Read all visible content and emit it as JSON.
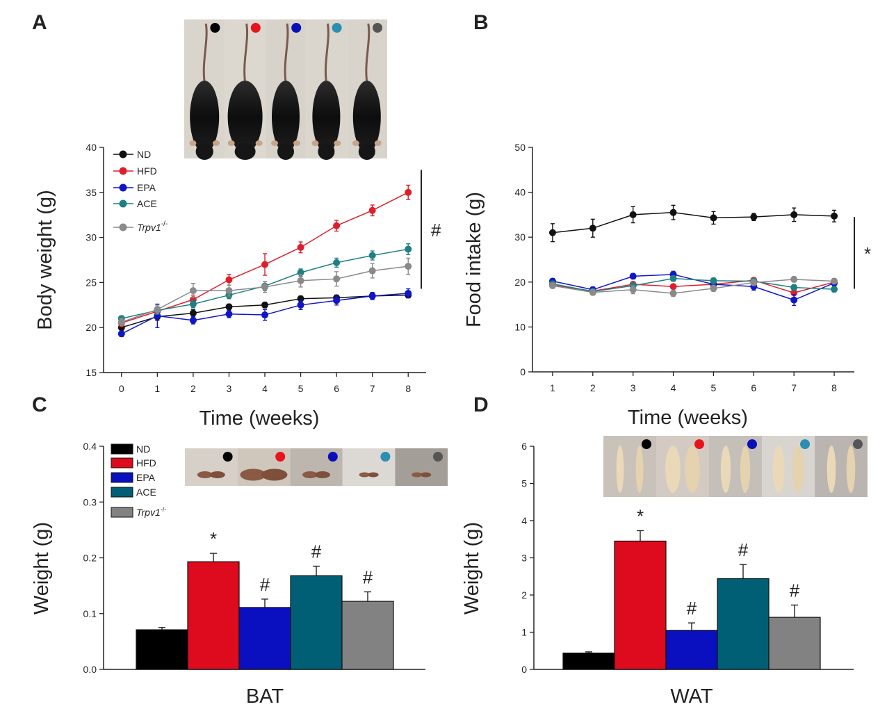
{
  "figure": {
    "panels": [
      "A",
      "B",
      "C",
      "D"
    ]
  },
  "groups": [
    {
      "name": "ND",
      "color": "#111111"
    },
    {
      "name": "HFD",
      "color": "#e01e2b"
    },
    {
      "name": "EPA",
      "color": "#1016c8"
    },
    {
      "name": "ACE",
      "color": "#1e7f84"
    },
    {
      "name": "Trpv1",
      "superscript": "-/-",
      "color": "#8a8a8a"
    }
  ],
  "bar_colors": [
    "#000000",
    "#dd0b1d",
    "#0a10c0",
    "#005f74",
    "#828282"
  ],
  "photo_dot_colors": [
    "#000000",
    "#e8131d",
    "#0b0fb8",
    "#2a8fb0",
    "#555555"
  ],
  "chart_data": [
    {
      "panel": "A",
      "type": "line",
      "xlabel": "Time (weeks)",
      "ylabel": "Body weight (g)",
      "x": [
        0,
        1,
        2,
        3,
        4,
        5,
        6,
        7,
        8
      ],
      "xlim": [
        -0.5,
        8.5
      ],
      "ylim": [
        15,
        40
      ],
      "yticks": [
        15,
        20,
        25,
        30,
        35,
        40
      ],
      "series": [
        {
          "name": "ND",
          "values": [
            20.0,
            21.2,
            21.6,
            22.3,
            22.5,
            23.2,
            23.3,
            23.5,
            23.6
          ],
          "errors": [
            0.3,
            0.4,
            0.4,
            0.3,
            0.3,
            0.3,
            0.3,
            0.3,
            0.3
          ]
        },
        {
          "name": "HFD",
          "values": [
            20.5,
            21.8,
            23.1,
            25.3,
            27.0,
            28.9,
            31.3,
            33.0,
            35.0
          ],
          "errors": [
            0.4,
            0.5,
            0.5,
            0.6,
            1.2,
            0.6,
            0.6,
            0.6,
            0.8
          ]
        },
        {
          "name": "EPA",
          "values": [
            19.3,
            21.3,
            20.8,
            21.5,
            21.4,
            22.5,
            23.0,
            23.5,
            23.8
          ],
          "errors": [
            0.3,
            1.3,
            0.4,
            0.4,
            0.6,
            0.5,
            0.5,
            0.4,
            0.5
          ]
        },
        {
          "name": "ACE",
          "values": [
            21.0,
            21.9,
            22.6,
            23.6,
            24.6,
            26.1,
            27.2,
            28.0,
            28.7
          ],
          "errors": [
            0.3,
            0.4,
            0.4,
            0.4,
            0.5,
            0.4,
            0.5,
            0.5,
            0.6
          ]
        },
        {
          "name": "Trpv1-/-",
          "values": [
            20.6,
            22.0,
            24.1,
            24.1,
            24.5,
            25.2,
            25.4,
            26.3,
            26.8
          ],
          "errors": [
            0.4,
            0.5,
            0.8,
            0.6,
            0.6,
            0.7,
            0.8,
            0.8,
            0.9
          ]
        }
      ],
      "annotation": "#",
      "legend_position": "top-left"
    },
    {
      "panel": "B",
      "type": "line",
      "xlabel": "Time (weeks)",
      "ylabel": "Food intake (g)",
      "x": [
        1,
        2,
        3,
        4,
        5,
        6,
        7,
        8
      ],
      "xlim": [
        0.5,
        8.5
      ],
      "ylim": [
        0,
        50
      ],
      "yticks": [
        0,
        10,
        20,
        30,
        40,
        50
      ],
      "series": [
        {
          "name": "ND",
          "values": [
            31.0,
            32.0,
            35.0,
            35.5,
            34.3,
            34.5,
            35.0,
            34.7
          ],
          "errors": [
            2.0,
            2.0,
            1.8,
            1.6,
            1.4,
            0.8,
            1.5,
            1.3
          ]
        },
        {
          "name": "HFD",
          "values": [
            19.3,
            18.0,
            19.5,
            19.0,
            19.5,
            20.4,
            17.6,
            20.0
          ],
          "errors": [
            0.5,
            0.5,
            0.5,
            0.5,
            0.5,
            0.5,
            0.5,
            0.5
          ]
        },
        {
          "name": "EPA",
          "values": [
            20.2,
            18.3,
            21.3,
            21.7,
            19.5,
            19.0,
            16.0,
            19.8
          ],
          "errors": [
            0.6,
            0.6,
            0.6,
            0.7,
            0.6,
            0.8,
            1.2,
            0.7
          ]
        },
        {
          "name": "ACE",
          "values": [
            19.6,
            17.9,
            19.2,
            20.8,
            20.3,
            20.2,
            18.8,
            18.4
          ],
          "errors": [
            0.6,
            0.6,
            0.6,
            0.6,
            0.6,
            0.6,
            0.6,
            0.6
          ]
        },
        {
          "name": "Trpv1-/-",
          "values": [
            19.2,
            17.7,
            18.3,
            17.5,
            18.6,
            19.9,
            20.6,
            20.2
          ],
          "errors": [
            0.6,
            0.6,
            0.9,
            0.7,
            0.7,
            0.7,
            0.6,
            0.6
          ]
        }
      ],
      "annotation": "*"
    },
    {
      "panel": "C",
      "type": "bar",
      "xlabel": "BAT",
      "ylabel": "Weight (g)",
      "categories": [
        "ND",
        "HFD",
        "EPA",
        "ACE",
        "Trpv1-/-"
      ],
      "values": [
        0.071,
        0.193,
        0.111,
        0.168,
        0.122
      ],
      "errors": [
        0.004,
        0.015,
        0.015,
        0.017,
        0.017
      ],
      "labels": [
        "",
        "*",
        "#",
        "#",
        "#"
      ],
      "ylim": [
        0,
        0.4
      ],
      "yticks": [
        "0.0",
        "0.1",
        "0.2",
        "0.3",
        "0.4"
      ],
      "legend_position": "top-left"
    },
    {
      "panel": "D",
      "type": "bar",
      "xlabel": "WAT",
      "ylabel": "Weight (g)",
      "categories": [
        "ND",
        "HFD",
        "EPA",
        "ACE",
        "Trpv1-/-"
      ],
      "values": [
        0.44,
        3.45,
        1.05,
        2.44,
        1.4
      ],
      "errors": [
        0.03,
        0.28,
        0.2,
        0.38,
        0.33
      ],
      "labels": [
        "",
        "*",
        "#",
        "#",
        "#"
      ],
      "ylim": [
        0,
        6
      ],
      "yticks": [
        0,
        1,
        2,
        3,
        4,
        5,
        6
      ]
    }
  ]
}
